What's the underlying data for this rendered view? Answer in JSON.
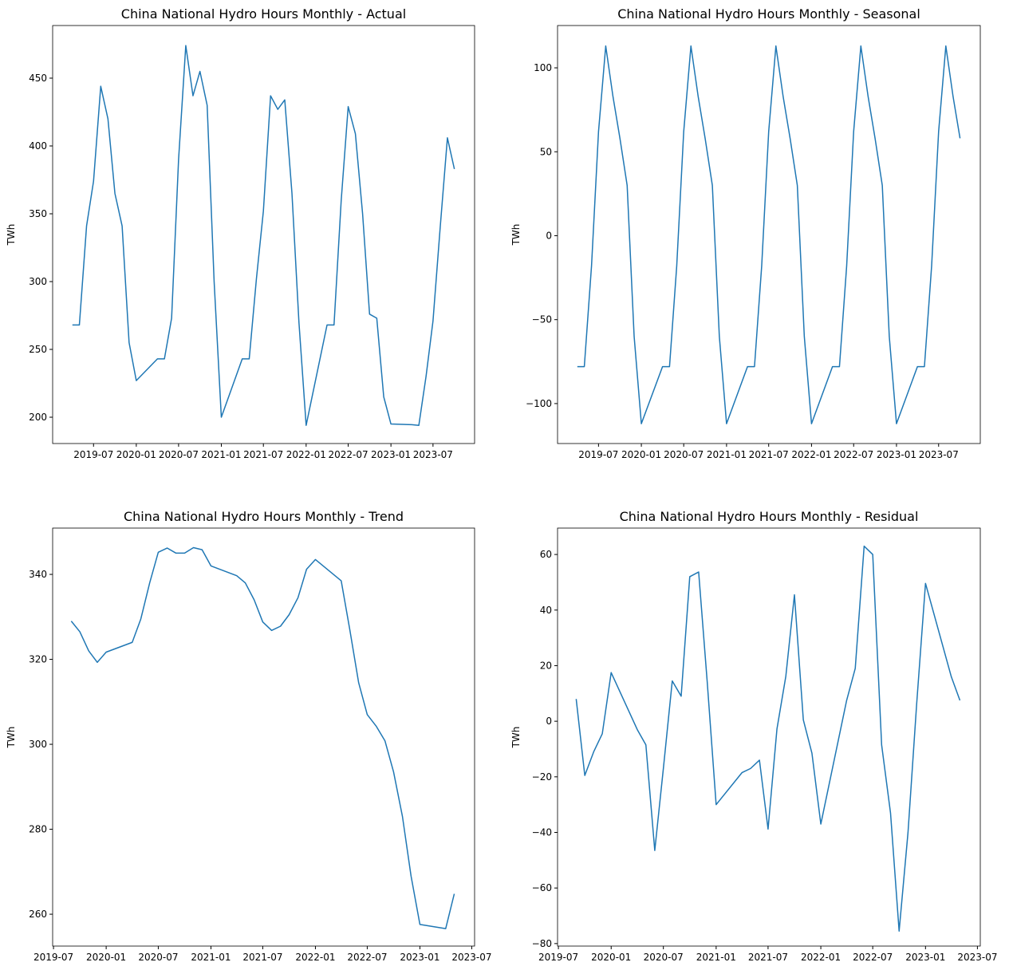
{
  "chart_data": [
    {
      "type": "line",
      "title": "China National Hydro Hours Monthly - Actual",
      "ylabel": "TWh",
      "color": "#1f77b4",
      "x": [
        "2019-04",
        "2019-05",
        "2019-06",
        "2019-07",
        "2019-08",
        "2019-09",
        "2019-10",
        "2019-11",
        "2019-12",
        "2020-01",
        "2020-04",
        "2020-05",
        "2020-06",
        "2020-07",
        "2020-08",
        "2020-09",
        "2020-10",
        "2020-11",
        "2020-12",
        "2021-01",
        "2021-04",
        "2021-05",
        "2021-06",
        "2021-07",
        "2021-08",
        "2021-09",
        "2021-10",
        "2021-11",
        "2021-12",
        "2022-01",
        "2022-04",
        "2022-05",
        "2022-06",
        "2022-07",
        "2022-08",
        "2022-09",
        "2022-10",
        "2022-11",
        "2022-12",
        "2023-01",
        "2023-04",
        "2023-05",
        "2023-06",
        "2023-07",
        "2023-08",
        "2023-09",
        "2023-10"
      ],
      "values": [
        268,
        268,
        341,
        374,
        444,
        420,
        365,
        341,
        255,
        227,
        243,
        243,
        273,
        390,
        474,
        437,
        455,
        430,
        300,
        200,
        243,
        243,
        302,
        352,
        437,
        427,
        434,
        365,
        270,
        194,
        268,
        268,
        360,
        429,
        409,
        350,
        276,
        273,
        215,
        195,
        194.5,
        194,
        230,
        271,
        340,
        406,
        383
      ],
      "xlim": [
        "2019-01-06",
        "2023-12-27"
      ],
      "xticks": [
        "2019-07",
        "2020-01",
        "2020-07",
        "2021-01",
        "2021-07",
        "2022-01",
        "2022-07",
        "2023-01",
        "2023-07"
      ],
      "ylim": [
        180.6,
        488.8
      ],
      "yticks": [
        200,
        250,
        300,
        350,
        400,
        450
      ]
    },
    {
      "type": "line",
      "title": "China National Hydro Hours Monthly - Seasonal",
      "ylabel": "TWh",
      "color": "#1f77b4",
      "x": [
        "2019-04",
        "2019-05",
        "2019-06",
        "2019-07",
        "2019-08",
        "2019-09",
        "2019-10",
        "2019-11",
        "2019-12",
        "2020-01",
        "2020-04",
        "2020-05",
        "2020-06",
        "2020-07",
        "2020-08",
        "2020-09",
        "2020-10",
        "2020-11",
        "2020-12",
        "2021-01",
        "2021-04",
        "2021-05",
        "2021-06",
        "2021-07",
        "2021-08",
        "2021-09",
        "2021-10",
        "2021-11",
        "2021-12",
        "2022-01",
        "2022-04",
        "2022-05",
        "2022-06",
        "2022-07",
        "2022-08",
        "2022-09",
        "2022-10",
        "2022-11",
        "2022-12",
        "2023-01",
        "2023-04",
        "2023-05",
        "2023-06",
        "2023-07",
        "2023-08",
        "2023-09",
        "2023-10"
      ],
      "values": [
        -78,
        -78,
        -18,
        62,
        113,
        83,
        58,
        30,
        -60,
        -112,
        -78,
        -78,
        -18,
        62,
        113,
        83,
        58,
        30,
        -60,
        -112,
        -78,
        -78,
        -18,
        62,
        113,
        83,
        58,
        30,
        -60,
        -112,
        -78,
        -78,
        -18,
        62,
        113,
        83,
        58,
        30,
        -60,
        -112,
        -78,
        -78,
        -18,
        62,
        113,
        83,
        58
      ],
      "xlim": [
        "2019-01-06",
        "2023-12-27"
      ],
      "xticks": [
        "2019-07",
        "2020-01",
        "2020-07",
        "2021-01",
        "2021-07",
        "2022-01",
        "2022-07",
        "2023-01",
        "2023-07"
      ],
      "ylim": [
        -123.8,
        125.2
      ],
      "yticks": [
        {
          "value": -100,
          "label": "−100"
        },
        {
          "value": -50,
          "label": "−50"
        },
        0,
        50,
        100
      ]
    },
    {
      "type": "line",
      "title": "China National Hydro Hours Monthly - Trend",
      "ylabel": "TWh",
      "color": "#1f77b4",
      "x": [
        "2019-09",
        "2019-10",
        "2019-11",
        "2019-12",
        "2020-01",
        "2020-04",
        "2020-05",
        "2020-06",
        "2020-07",
        "2020-08",
        "2020-09",
        "2020-10",
        "2020-11",
        "2020-12",
        "2021-01",
        "2021-04",
        "2021-05",
        "2021-06",
        "2021-07",
        "2021-08",
        "2021-09",
        "2021-10",
        "2021-11",
        "2021-12",
        "2022-01",
        "2022-04",
        "2022-05",
        "2022-06",
        "2022-07",
        "2022-08",
        "2022-09",
        "2022-10",
        "2022-11",
        "2022-12",
        "2023-01",
        "2023-04",
        "2023-05"
      ],
      "values": [
        329,
        326.5,
        322,
        319.3,
        321.7,
        324,
        329.5,
        338,
        345.2,
        346.2,
        345,
        345,
        346.3,
        345.8,
        342,
        339.7,
        338,
        334,
        328.8,
        326.8,
        327.8,
        330.5,
        334.5,
        341.2,
        343.5,
        338.5,
        327,
        314.5,
        307,
        304.3,
        300.8,
        293.5,
        283,
        269,
        257.6,
        256.6,
        264.8
      ],
      "xlim": [
        "2019-06-28",
        "2023-07-11"
      ],
      "xticks": [
        "2019-07",
        "2020-01",
        "2020-07",
        "2021-01",
        "2021-07",
        "2022-01",
        "2022-07",
        "2023-01",
        "2023-07"
      ],
      "ylim": [
        252.5,
        350.9
      ],
      "yticks": [
        260,
        280,
        300,
        320,
        340
      ]
    },
    {
      "type": "line",
      "title": "China National Hydro Hours Monthly - Residual",
      "ylabel": "TWh",
      "color": "#1f77b4",
      "x": [
        "2019-09",
        "2019-10",
        "2019-11",
        "2019-12",
        "2020-01",
        "2020-04",
        "2020-05",
        "2020-06",
        "2020-07",
        "2020-08",
        "2020-09",
        "2020-10",
        "2020-11",
        "2020-12",
        "2021-01",
        "2021-04",
        "2021-05",
        "2021-06",
        "2021-07",
        "2021-08",
        "2021-09",
        "2021-10",
        "2021-11",
        "2021-12",
        "2022-01",
        "2022-04",
        "2022-05",
        "2022-06",
        "2022-07",
        "2022-08",
        "2022-09",
        "2022-10",
        "2022-11",
        "2022-12",
        "2023-01",
        "2023-04",
        "2023-05"
      ],
      "values": [
        8,
        -19.5,
        -11,
        -4.5,
        17.5,
        -3,
        -8.5,
        -46.5,
        -17,
        14.5,
        9,
        52,
        53.7,
        14,
        -30,
        -18.5,
        -17,
        -14,
        -38.8,
        -2.8,
        16.2,
        45.5,
        0.5,
        -11.5,
        -37,
        7.5,
        19,
        63,
        60,
        -8.5,
        -33,
        -75.5,
        -40,
        6,
        49.6,
        16,
        7.5
      ],
      "xlim": [
        "2019-06-28",
        "2023-07-11"
      ],
      "xticks": [
        "2019-07",
        "2020-01",
        "2020-07",
        "2021-01",
        "2021-07",
        "2022-01",
        "2022-07",
        "2023-01",
        "2023-07"
      ],
      "ylim": [
        -80.9,
        69.5
      ],
      "yticks": [
        {
          "value": -80,
          "label": "−80"
        },
        {
          "value": -60,
          "label": "−60"
        },
        {
          "value": -40,
          "label": "−40"
        },
        {
          "value": -20,
          "label": "−20"
        },
        0,
        20,
        40,
        60
      ]
    }
  ]
}
